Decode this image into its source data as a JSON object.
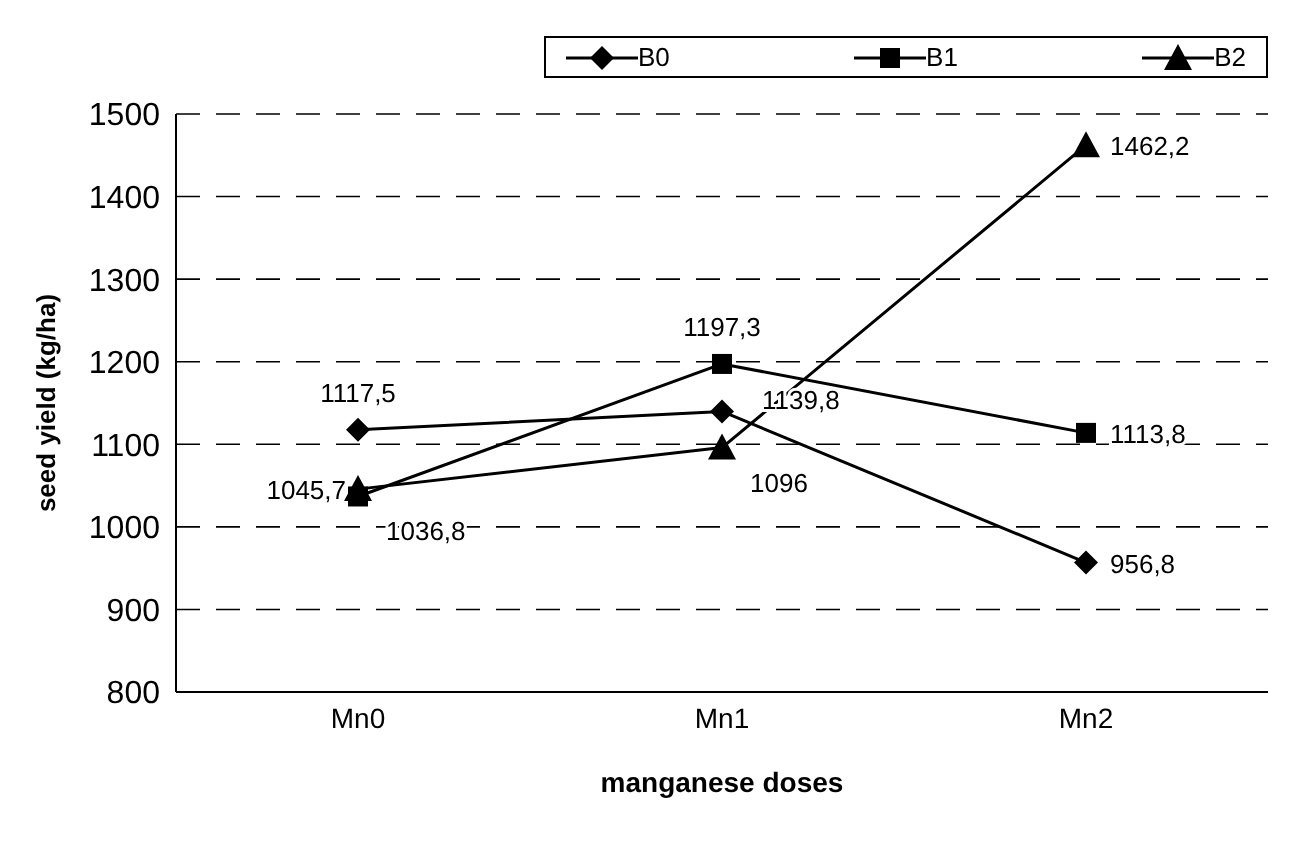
{
  "chart_data": {
    "type": "line",
    "xlabel": "manganese doses",
    "ylabel": "seed yield (kg/ha)",
    "categories": [
      "Mn0",
      "Mn1",
      "Mn2"
    ],
    "series": [
      {
        "name": "B0",
        "color": "#000000",
        "marker": "diamond",
        "values": [
          1117.5,
          1139.8,
          956.8
        ],
        "value_labels": [
          "1117,5",
          "1139,8",
          "956,8"
        ]
      },
      {
        "name": "B1",
        "color": "#000000",
        "marker": "square",
        "values": [
          1036.8,
          1197.3,
          1113.8
        ],
        "value_labels": [
          "1036,8",
          "1197,3",
          "1113,8"
        ]
      },
      {
        "name": "B2",
        "color": "#000000",
        "marker": "triangle",
        "values": [
          1045.7,
          1096,
          1462.2
        ],
        "value_labels": [
          "1045,7",
          "1096",
          "1462,2"
        ]
      }
    ],
    "ylim": [
      800,
      1500
    ],
    "yticks": [
      800,
      900,
      1000,
      1100,
      1200,
      1300,
      1400,
      1500
    ],
    "grid": "y",
    "legend": "top right",
    "line_style": "solid"
  }
}
